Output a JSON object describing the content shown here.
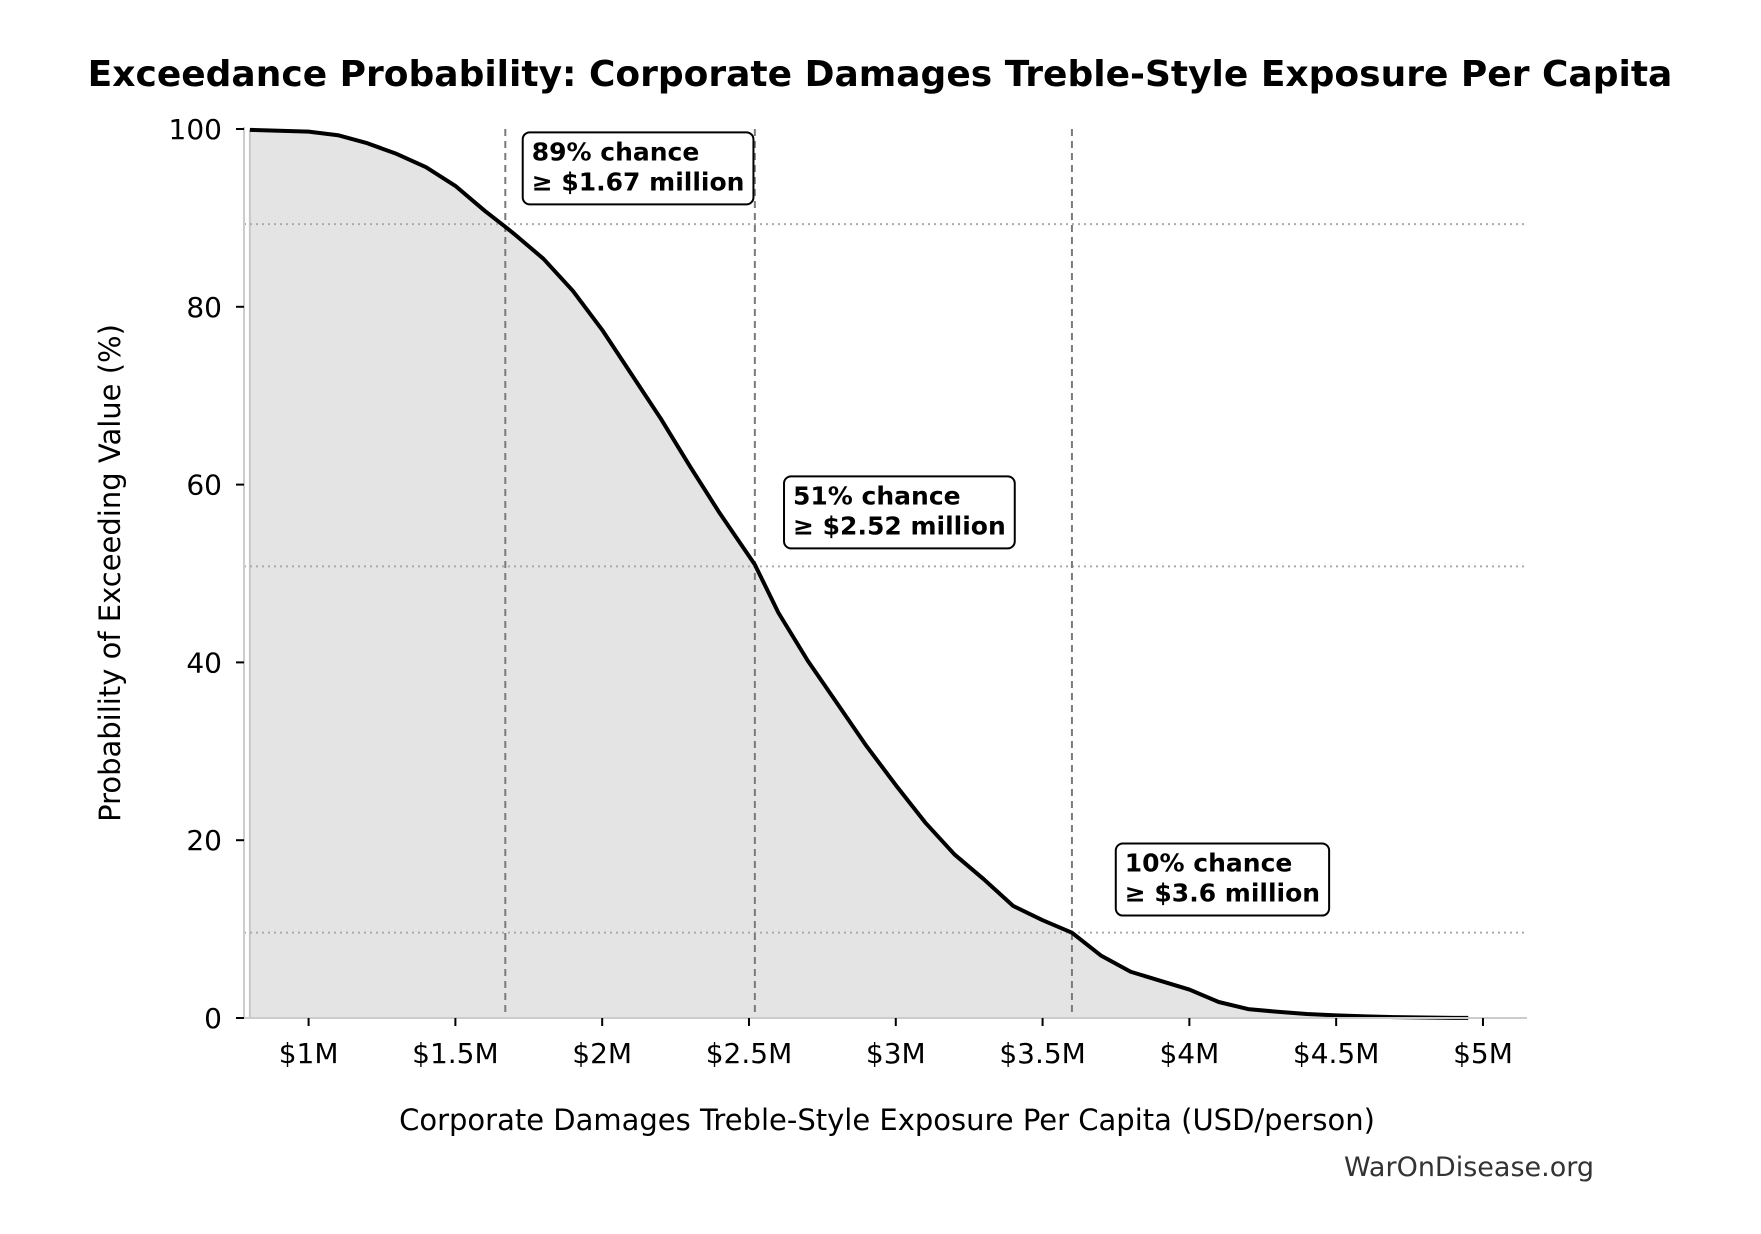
{
  "chart_data": {
    "type": "area",
    "title": "Exceedance Probability: Corporate Damages Treble-Style Exposure Per Capita",
    "xlabel": "Corporate Damages Treble-Style Exposure Per Capita (USD/person)",
    "ylabel": "Probability of Exceeding Value (%)",
    "xlim": [
      780000,
      5150000
    ],
    "ylim": [
      0,
      100
    ],
    "x_ticks": [
      {
        "value": 1000000,
        "label": "$1M"
      },
      {
        "value": 1500000,
        "label": "$1.5M"
      },
      {
        "value": 2000000,
        "label": "$2M"
      },
      {
        "value": 2500000,
        "label": "$2.5M"
      },
      {
        "value": 3000000,
        "label": "$3M"
      },
      {
        "value": 3500000,
        "label": "$3.5M"
      },
      {
        "value": 4000000,
        "label": "$4M"
      },
      {
        "value": 4500000,
        "label": "$4.5M"
      },
      {
        "value": 5000000,
        "label": "$5M"
      }
    ],
    "y_ticks": [
      {
        "value": 0,
        "label": "0"
      },
      {
        "value": 20,
        "label": "20"
      },
      {
        "value": 40,
        "label": "40"
      },
      {
        "value": 60,
        "label": "60"
      },
      {
        "value": 80,
        "label": "80"
      },
      {
        "value": 100,
        "label": "100"
      }
    ],
    "grid": false,
    "series": [
      {
        "x": [
          800000,
          900000,
          1000000,
          1100000,
          1200000,
          1300000,
          1400000,
          1500000,
          1600000,
          1670000,
          1700000,
          1800000,
          1900000,
          2000000,
          2100000,
          2200000,
          2300000,
          2400000,
          2520000,
          2600000,
          2700000,
          2800000,
          2900000,
          3000000,
          3100000,
          3200000,
          3300000,
          3400000,
          3500000,
          3600000,
          3700000,
          3800000,
          3900000,
          4000000,
          4100000,
          4200000,
          4300000,
          4400000,
          4500000,
          4600000,
          4700000,
          4800000,
          4900000,
          4950000
        ],
        "y": [
          99.9,
          99.8,
          99.7,
          99.3,
          98.4,
          97.2,
          95.7,
          93.6,
          90.8,
          89.0,
          88.2,
          85.4,
          81.8,
          77.4,
          72.4,
          67.4,
          62.0,
          56.8,
          51.0,
          45.6,
          40.2,
          35.4,
          30.6,
          26.2,
          22.0,
          18.4,
          15.6,
          12.6,
          11.0,
          9.6,
          7.0,
          5.2,
          4.2,
          3.2,
          1.8,
          1.0,
          0.7,
          0.45,
          0.3,
          0.18,
          0.1,
          0.05,
          0.02,
          0.01
        ]
      }
    ],
    "reference_lines": [
      {
        "x": 1670000,
        "y": 89.3
      },
      {
        "x": 2520000,
        "y": 50.8
      },
      {
        "x": 3600000,
        "y": 9.6
      }
    ],
    "annotations": [
      {
        "line1": "89% chance",
        "line2": "≥ $1.67 million",
        "x": 1760000,
        "y": 98.5
      },
      {
        "line1": "51% chance",
        "line2": "≥ $2.52 million",
        "x": 2650000,
        "y": 59.8
      },
      {
        "line1": "10% chance",
        "line2": "≥ $3.6 million",
        "x": 3780000,
        "y": 18.5
      }
    ],
    "colors": {
      "line": "#000000",
      "fill": "#e4e4e4",
      "ref_vertical": "#7a7a7a",
      "ref_horizontal": "#aaaaaa"
    }
  },
  "watermark": "WarOnDisease.org"
}
